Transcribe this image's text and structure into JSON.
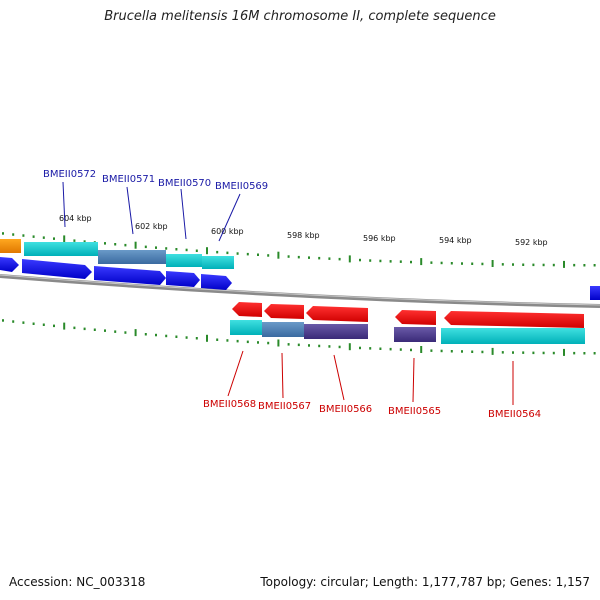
{
  "title": "Brucella melitensis 16M chromosome II, complete sequence",
  "footer": {
    "accession": "Accession: NC_003318",
    "summary": "Topology: circular; Length: 1,177,787 bp; Genes: 1,157"
  },
  "colors": {
    "forward_gene": "#0000ee",
    "reverse_gene": "#ee0000",
    "cds_cyan": "#00c8c8",
    "cds_blue_grey": "#4a7ab0",
    "cds_purple": "#4a3a8a",
    "backbone": "#888888",
    "tick": "#2a8a2a",
    "orange": "#f08c00"
  },
  "tick_labels": [
    "604 kbp",
    "602 kbp",
    "600 kbp",
    "598 kbp",
    "596 kbp",
    "594 kbp",
    "592 kbp"
  ],
  "genes_forward": [
    "BMEII0572",
    "BMEII0571",
    "BMEII0570",
    "BMEII0569"
  ],
  "genes_reverse": [
    "BMEII0568",
    "BMEII0567",
    "BMEII0566",
    "BMEII0565",
    "BMEII0564"
  ]
}
